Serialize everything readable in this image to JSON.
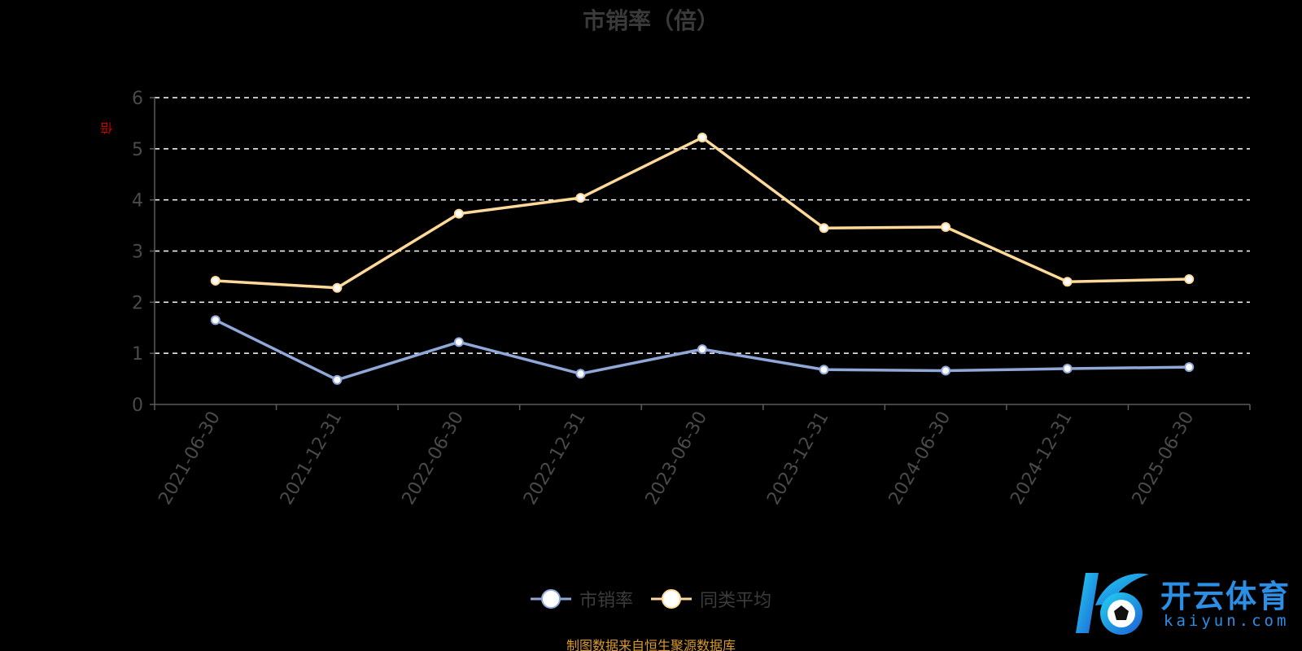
{
  "chart_data": {
    "type": "line",
    "title": "市销率（倍）",
    "ylabel": "倍",
    "categories": [
      "2021-06-30",
      "2021-12-31",
      "2022-06-30",
      "2022-12-31",
      "2023-06-30",
      "2023-12-31",
      "2024-06-30",
      "2024-12-31",
      "2025-06-30"
    ],
    "ylim": [
      0,
      6
    ],
    "yticks": [
      0,
      1,
      2,
      3,
      4,
      5,
      6
    ],
    "grid": true,
    "legend_position": "bottom-center",
    "series": [
      {
        "name": "市销率",
        "color": "#8fa8d8",
        "values": [
          1.65,
          0.48,
          1.22,
          0.6,
          1.08,
          0.68,
          0.66,
          0.7,
          0.73
        ]
      },
      {
        "name": "同类平均",
        "color": "#ffd99a",
        "values": [
          2.42,
          2.28,
          3.73,
          4.04,
          5.22,
          3.45,
          3.47,
          2.4,
          2.45
        ]
      }
    ]
  },
  "source_note": "制图数据来自恒生聚源数据库",
  "logo": {
    "name_cn": "开云体育",
    "name_en": "kaiyun.com"
  },
  "colors": {
    "background": "#000000",
    "grid": "#ffffff",
    "axis": "#5a5a5a",
    "tick_label": "#4a4a4a",
    "unit_label": "#d10000",
    "source_note": "#d99a2b",
    "logo_blue": "#2b8fe6"
  }
}
